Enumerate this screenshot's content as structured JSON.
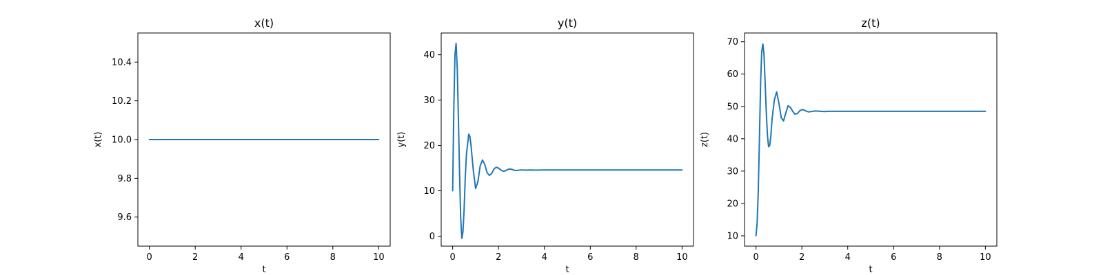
{
  "chart_data": [
    {
      "type": "line",
      "title": "x(t)",
      "xlabel": "t",
      "ylabel": "x(t)",
      "xlim": [
        -0.5,
        10.5
      ],
      "ylim": [
        9.45,
        10.55
      ],
      "xticks": [
        0,
        2,
        4,
        6,
        8,
        10
      ],
      "yticks": [
        9.6,
        9.8,
        10.0,
        10.2,
        10.4
      ],
      "ytick_labels": [
        "9.6",
        "9.8",
        "10.0",
        "10.2",
        "10.4"
      ],
      "series": [
        {
          "color": "#1f77b4",
          "x": [
            0,
            10
          ],
          "y": [
            10.0,
            10.0
          ]
        }
      ]
    },
    {
      "type": "line",
      "title": "y(t)",
      "xlabel": "t",
      "ylabel": "y(t)",
      "xlim": [
        -0.5,
        10.5
      ],
      "ylim": [
        -2.2,
        44.8
      ],
      "xticks": [
        0,
        2,
        4,
        6,
        8,
        10
      ],
      "yticks": [
        0,
        10,
        20,
        30,
        40
      ],
      "ytick_labels": [
        "0",
        "10",
        "20",
        "30",
        "40"
      ],
      "series": [
        {
          "color": "#1f77b4",
          "x": [
            0,
            0.05,
            0.1,
            0.15,
            0.2,
            0.25,
            0.3,
            0.35,
            0.4,
            0.45,
            0.5,
            0.55,
            0.6,
            0.7,
            0.75,
            0.8,
            0.9,
            1.0,
            1.1,
            1.2,
            1.3,
            1.4,
            1.5,
            1.6,
            1.7,
            1.8,
            1.9,
            2.0,
            2.1,
            2.2,
            2.3,
            2.4,
            2.5,
            2.6,
            2.7,
            2.8,
            3.0,
            3.2,
            3.4,
            3.6,
            4.0,
            5.0,
            6.0,
            7.0,
            8.0,
            9.0,
            10.0
          ],
          "y": [
            10,
            28,
            40,
            42.5,
            37,
            26,
            14,
            4,
            -0.5,
            1,
            6,
            13,
            18,
            22.5,
            22,
            20,
            14.5,
            10.5,
            12,
            15.5,
            16.8,
            15.8,
            14,
            13.4,
            13.8,
            14.8,
            15.2,
            15.0,
            14.6,
            14.3,
            14.4,
            14.7,
            14.8,
            14.7,
            14.5,
            14.5,
            14.6,
            14.55,
            14.6,
            14.55,
            14.6,
            14.6,
            14.6,
            14.6,
            14.6,
            14.6,
            14.6
          ]
        }
      ]
    },
    {
      "type": "line",
      "title": "z(t)",
      "xlabel": "t",
      "ylabel": "z(t)",
      "xlim": [
        -0.5,
        10.5
      ],
      "ylim": [
        6.8,
        72.7
      ],
      "xticks": [
        0,
        2,
        4,
        6,
        8,
        10
      ],
      "yticks": [
        10,
        20,
        30,
        40,
        50,
        60,
        70
      ],
      "ytick_labels": [
        "10",
        "20",
        "30",
        "40",
        "50",
        "60",
        "70"
      ],
      "series": [
        {
          "color": "#1f77b4",
          "x": [
            0,
            0.05,
            0.1,
            0.15,
            0.2,
            0.25,
            0.3,
            0.35,
            0.4,
            0.45,
            0.5,
            0.55,
            0.6,
            0.65,
            0.7,
            0.8,
            0.9,
            1.0,
            1.1,
            1.2,
            1.3,
            1.4,
            1.5,
            1.6,
            1.7,
            1.8,
            1.9,
            2.0,
            2.1,
            2.2,
            2.3,
            2.4,
            2.6,
            2.8,
            3.0,
            3.2,
            3.5,
            4.0,
            5.0,
            6.0,
            7.0,
            8.0,
            9.0,
            10.0
          ],
          "y": [
            10,
            14,
            24,
            40,
            57,
            67,
            69.3,
            66,
            57,
            48,
            41,
            37.5,
            38,
            41,
            46,
            52,
            54.5,
            51,
            46.5,
            45.5,
            48,
            50.2,
            49.7,
            48.5,
            47.6,
            47.8,
            48.6,
            49.0,
            48.9,
            48.5,
            48.3,
            48.4,
            48.6,
            48.5,
            48.4,
            48.5,
            48.5,
            48.5,
            48.5,
            48.5,
            48.5,
            48.5,
            48.5,
            48.5
          ]
        }
      ]
    }
  ]
}
